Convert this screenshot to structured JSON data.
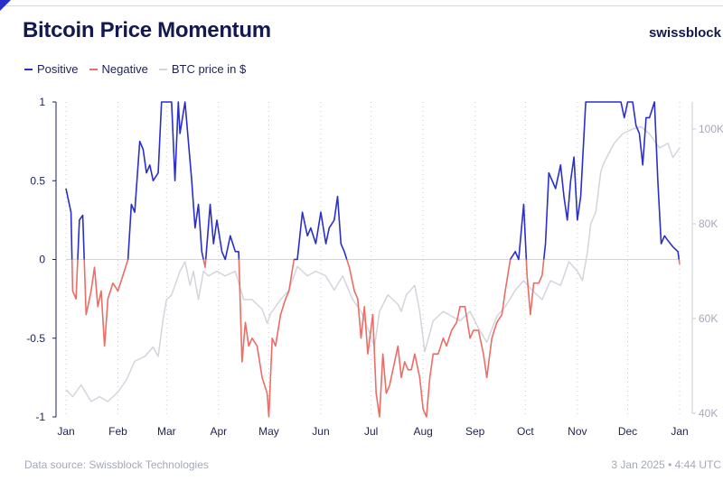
{
  "header": {
    "title": "Bitcoin Price Momentum",
    "brand": "swissblock"
  },
  "legend": [
    {
      "label": "Positive",
      "color": "#2a2fc9"
    },
    {
      "label": "Negative",
      "color": "#ea6d66"
    },
    {
      "label": "BTC price in $",
      "color": "#d3d5dc"
    }
  ],
  "footer": {
    "source": "Data source: Swissblock Technologies",
    "timestamp": "3 Jan 2025 • 4:44 UTC"
  },
  "chart_data": {
    "type": "line",
    "title": "Bitcoin Price Momentum",
    "x_unit": "day of year (0 = 1 Jan 2024)",
    "x_ticks": [
      "Jan",
      "Feb",
      "Mar",
      "Apr",
      "May",
      "Jun",
      "Jul",
      "Aug",
      "Sep",
      "Oct",
      "Nov",
      "Dec",
      "Jan"
    ],
    "x_tick_days": [
      0,
      31,
      60,
      91,
      121,
      152,
      182,
      213,
      244,
      274,
      305,
      335,
      366
    ],
    "y_left": {
      "ticks": [
        "1",
        "0.5",
        "0",
        "-0.5",
        "-1"
      ],
      "tick_values": [
        1,
        0.5,
        0,
        -0.5,
        -1
      ],
      "ylim": [
        -1,
        1
      ]
    },
    "y_right": {
      "ticks": [
        "40K",
        "60K",
        "80K",
        "100K"
      ],
      "tick_values": [
        40,
        60,
        80,
        100
      ],
      "ylim": [
        40,
        105
      ],
      "unit": "thousand USD"
    },
    "momentum": {
      "name": "Momentum (Positive/Negative)",
      "points": [
        [
          0,
          0.45
        ],
        [
          3,
          0.3
        ],
        [
          4,
          -0.2
        ],
        [
          6,
          -0.25
        ],
        [
          8,
          0.25
        ],
        [
          10,
          0.28
        ],
        [
          12,
          -0.35
        ],
        [
          15,
          -0.2
        ],
        [
          17,
          -0.05
        ],
        [
          19,
          -0.3
        ],
        [
          21,
          -0.2
        ],
        [
          23,
          -0.55
        ],
        [
          25,
          -0.25
        ],
        [
          28,
          -0.15
        ],
        [
          31,
          -0.2
        ],
        [
          34,
          -0.1
        ],
        [
          37,
          0
        ],
        [
          39,
          0.35
        ],
        [
          41,
          0.3
        ],
        [
          44,
          0.75
        ],
        [
          46,
          0.7
        ],
        [
          48,
          0.55
        ],
        [
          50,
          0.6
        ],
        [
          52,
          0.5
        ],
        [
          55,
          0.55
        ],
        [
          57,
          1
        ],
        [
          63,
          1
        ],
        [
          65,
          0.5
        ],
        [
          67,
          1
        ],
        [
          68,
          0.8
        ],
        [
          71,
          1
        ],
        [
          73,
          0.75
        ],
        [
          75,
          0.5
        ],
        [
          77,
          0.2
        ],
        [
          79,
          0.35
        ],
        [
          81,
          0.05
        ],
        [
          83,
          -0.05
        ],
        [
          86,
          0.35
        ],
        [
          88,
          0.1
        ],
        [
          90,
          0.25
        ],
        [
          93,
          0.05
        ],
        [
          95,
          0
        ],
        [
          98,
          0.15
        ],
        [
          101,
          0.05
        ],
        [
          103,
          0.05
        ],
        [
          105,
          -0.65
        ],
        [
          107,
          -0.4
        ],
        [
          109,
          -0.55
        ],
        [
          111,
          -0.5
        ],
        [
          114,
          -0.55
        ],
        [
          117,
          -0.75
        ],
        [
          120,
          -0.85
        ],
        [
          121,
          -1
        ],
        [
          123,
          -0.5
        ],
        [
          125,
          -0.55
        ],
        [
          128,
          -0.35
        ],
        [
          131,
          -0.25
        ],
        [
          133,
          -0.2
        ],
        [
          136,
          0
        ],
        [
          138,
          0
        ],
        [
          141,
          0.3
        ],
        [
          144,
          0.15
        ],
        [
          146,
          0.2
        ],
        [
          149,
          0.1
        ],
        [
          152,
          0.3
        ],
        [
          155,
          0.1
        ],
        [
          157,
          0.2
        ],
        [
          160,
          0.25
        ],
        [
          162,
          0.4
        ],
        [
          164,
          0.1
        ],
        [
          166,
          0.05
        ],
        [
          169,
          -0.05
        ],
        [
          172,
          -0.2
        ],
        [
          174,
          -0.25
        ],
        [
          176,
          -0.5
        ],
        [
          178,
          -0.3
        ],
        [
          180,
          -0.6
        ],
        [
          183,
          -0.35
        ],
        [
          185,
          -0.85
        ],
        [
          187,
          -1
        ],
        [
          189,
          -0.6
        ],
        [
          191,
          -0.85
        ],
        [
          193,
          -0.8
        ],
        [
          195,
          -0.7
        ],
        [
          198,
          -0.55
        ],
        [
          200,
          -0.75
        ],
        [
          202,
          -0.65
        ],
        [
          204,
          -0.7
        ],
        [
          206,
          -0.7
        ],
        [
          208,
          -0.6
        ],
        [
          211,
          -0.75
        ],
        [
          213,
          -0.95
        ],
        [
          215,
          -1
        ],
        [
          217,
          -0.75
        ],
        [
          219,
          -0.6
        ],
        [
          222,
          -0.6
        ],
        [
          225,
          -0.5
        ],
        [
          227,
          -0.55
        ],
        [
          230,
          -0.45
        ],
        [
          233,
          -0.4
        ],
        [
          235,
          -0.3
        ],
        [
          238,
          -0.3
        ],
        [
          241,
          -0.5
        ],
        [
          243,
          -0.45
        ],
        [
          246,
          -0.45
        ],
        [
          249,
          -0.6
        ],
        [
          251,
          -0.75
        ],
        [
          254,
          -0.5
        ],
        [
          257,
          -0.4
        ],
        [
          260,
          -0.35
        ],
        [
          262,
          -0.2
        ],
        [
          265,
          0
        ],
        [
          268,
          0.05
        ],
        [
          270,
          0
        ],
        [
          273,
          0.35
        ],
        [
          275,
          -0.1
        ],
        [
          277,
          -0.35
        ],
        [
          279,
          -0.15
        ],
        [
          282,
          -0.15
        ],
        [
          284,
          -0.1
        ],
        [
          286,
          0.1
        ],
        [
          288,
          0.55
        ],
        [
          290,
          0.5
        ],
        [
          292,
          0.45
        ],
        [
          295,
          0.6
        ],
        [
          297,
          0.4
        ],
        [
          299,
          0.25
        ],
        [
          301,
          0.5
        ],
        [
          303,
          0.65
        ],
        [
          305,
          0.25
        ],
        [
          307,
          0.4
        ],
        [
          310,
          1
        ],
        [
          316,
          1
        ],
        [
          321,
          1
        ],
        [
          327,
          1
        ],
        [
          331,
          1
        ],
        [
          333,
          0.9
        ],
        [
          335,
          1
        ],
        [
          338,
          1
        ],
        [
          340,
          0.85
        ],
        [
          342,
          0.8
        ],
        [
          344,
          0.6
        ],
        [
          346,
          0.9
        ],
        [
          348,
          0.9
        ],
        [
          351,
          1
        ],
        [
          353,
          0.5
        ],
        [
          355,
          0.1
        ],
        [
          357,
          0.15
        ],
        [
          359,
          0.12
        ],
        [
          362,
          0.08
        ],
        [
          365,
          0.05
        ],
        [
          366,
          -0.03
        ]
      ]
    },
    "price": {
      "name": "BTC price in $",
      "points": [
        [
          0,
          45
        ],
        [
          4,
          43.5
        ],
        [
          9,
          46
        ],
        [
          15,
          42.5
        ],
        [
          20,
          43.5
        ],
        [
          25,
          42.5
        ],
        [
          31,
          44.5
        ],
        [
          36,
          47
        ],
        [
          41,
          51
        ],
        [
          47,
          52
        ],
        [
          52,
          54
        ],
        [
          55,
          52
        ],
        [
          58,
          60
        ],
        [
          60,
          64
        ],
        [
          63,
          65
        ],
        [
          66,
          68
        ],
        [
          68,
          70
        ],
        [
          71,
          72
        ],
        [
          74,
          67
        ],
        [
          76,
          70
        ],
        [
          79,
          64
        ],
        [
          82,
          70
        ],
        [
          85,
          69
        ],
        [
          90,
          70
        ],
        [
          95,
          69
        ],
        [
          101,
          70
        ],
        [
          106,
          64
        ],
        [
          111,
          64
        ],
        [
          117,
          62
        ],
        [
          120,
          59
        ],
        [
          122,
          61
        ],
        [
          128,
          64
        ],
        [
          133,
          66
        ],
        [
          138,
          71
        ],
        [
          144,
          69
        ],
        [
          149,
          70
        ],
        [
          155,
          69
        ],
        [
          160,
          66
        ],
        [
          165,
          69
        ],
        [
          171,
          64
        ],
        [
          176,
          61.5
        ],
        [
          181,
          57
        ],
        [
          184,
          54
        ],
        [
          187,
          61.5
        ],
        [
          192,
          65
        ],
        [
          198,
          63
        ],
        [
          200,
          61.5
        ],
        [
          203,
          65
        ],
        [
          208,
          67
        ],
        [
          211,
          61.5
        ],
        [
          214,
          53
        ],
        [
          219,
          59.5
        ],
        [
          225,
          61.5
        ],
        [
          230,
          60.5
        ],
        [
          235,
          59.5
        ],
        [
          241,
          61.5
        ],
        [
          246,
          58
        ],
        [
          251,
          55
        ],
        [
          257,
          60.5
        ],
        [
          262,
          62.5
        ],
        [
          268,
          66
        ],
        [
          273,
          68
        ],
        [
          278,
          66
        ],
        [
          284,
          64
        ],
        [
          289,
          68
        ],
        [
          295,
          67
        ],
        [
          300,
          72
        ],
        [
          305,
          70
        ],
        [
          308,
          68
        ],
        [
          311,
          74
        ],
        [
          313,
          80
        ],
        [
          316,
          82.5
        ],
        [
          319,
          91
        ],
        [
          321,
          93
        ],
        [
          327,
          97
        ],
        [
          332,
          99
        ],
        [
          338,
          100
        ],
        [
          343,
          100.5
        ],
        [
          348,
          99
        ],
        [
          354,
          96
        ],
        [
          359,
          97
        ],
        [
          362,
          94
        ],
        [
          366,
          96
        ]
      ]
    }
  }
}
